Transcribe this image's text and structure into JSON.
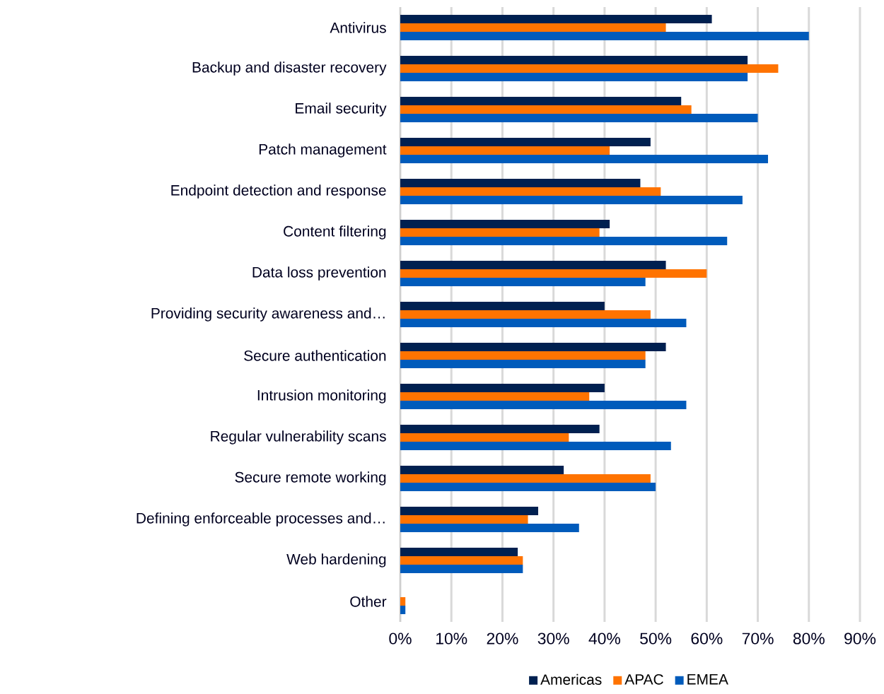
{
  "chart_data": {
    "type": "bar",
    "orientation": "horizontal",
    "categories": [
      "Antivirus",
      "Backup and disaster recovery",
      "Email security",
      "Patch management",
      "Endpoint detection and response",
      "Content filtering",
      "Data loss prevention",
      "Providing security awareness and…",
      "Secure authentication",
      "Intrusion monitoring",
      "Regular vulnerability scans",
      "Secure remote working",
      "Defining enforceable processes and…",
      "Web hardening",
      "Other"
    ],
    "series": [
      {
        "name": "Americas",
        "color": "#002050",
        "values": [
          61,
          68,
          55,
          49,
          47,
          41,
          52,
          40,
          52,
          40,
          39,
          32,
          27,
          23,
          0
        ]
      },
      {
        "name": "APAC",
        "color": "#ff7300",
        "values": [
          52,
          74,
          57,
          41,
          51,
          39,
          60,
          49,
          48,
          37,
          33,
          49,
          25,
          24,
          1
        ]
      },
      {
        "name": "EMEA",
        "color": "#005bbb",
        "values": [
          80,
          68,
          70,
          72,
          67,
          64,
          48,
          56,
          48,
          56,
          53,
          50,
          35,
          24,
          1
        ]
      }
    ],
    "xlim": [
      0,
      90
    ],
    "xticks": [
      {
        "value": 0,
        "label": "0%"
      },
      {
        "value": 10,
        "label": "10%"
      },
      {
        "value": 20,
        "label": "20%"
      },
      {
        "value": 30,
        "label": "30%"
      },
      {
        "value": 40,
        "label": "40%"
      },
      {
        "value": 50,
        "label": "50%"
      },
      {
        "value": 60,
        "label": "60%"
      },
      {
        "value": 70,
        "label": "70%"
      },
      {
        "value": 80,
        "label": "80%"
      },
      {
        "value": 90,
        "label": "90%"
      }
    ],
    "grid": "x",
    "legend": "bottom"
  }
}
